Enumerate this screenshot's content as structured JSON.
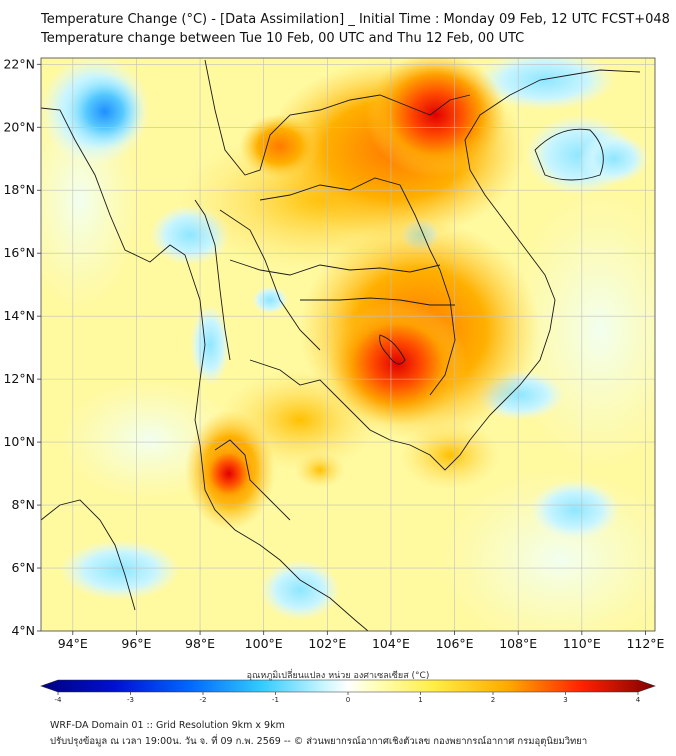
{
  "title": {
    "line1": "Temperature Change (°C) - [Data Assimilation] _ Initial Time : Monday 09 Feb, 12 UTC FCST+048",
    "line2": "Temperature change between Tue 10 Feb, 00 UTC and Thu 12 Feb, 00 UTC"
  },
  "map": {
    "lat_labels": [
      "4°N",
      "6°N",
      "8°N",
      "10°N",
      "12°N",
      "14°N",
      "16°N",
      "18°N",
      "20°N",
      "22°N"
    ],
    "lon_labels": [
      "94°E",
      "96°E",
      "98°E",
      "100°E",
      "102°E",
      "104°E",
      "106°E",
      "108°E",
      "110°E",
      "112°E"
    ],
    "lon_range": [
      93,
      112.3
    ],
    "lat_range": [
      4,
      22.2
    ],
    "hotspots": [
      {
        "lon": 105.4,
        "lat": 20.4,
        "value": 3.0
      },
      {
        "lon": 104.2,
        "lat": 12.5,
        "value": 3.0
      },
      {
        "lon": 98.9,
        "lat": 9.0,
        "value": 2.8
      },
      {
        "lon": 100.5,
        "lat": 19.4,
        "value": 2.0
      },
      {
        "lon": 95.0,
        "lat": 20.5,
        "value": -2.2
      },
      {
        "lon": 111.0,
        "lat": 19.0,
        "value": -1.0
      }
    ]
  },
  "colorbar": {
    "label": "อุณหภูมิเปลี่ยนแปลง หน่วย องศาเซลเซียส (°C)",
    "ticks": [
      "-4",
      "-3",
      "-2",
      "-1",
      "0",
      "1",
      "2",
      "3",
      "4"
    ],
    "min": -4,
    "max": 4
  },
  "footer": {
    "line1": "WRF-DA Domain 01 :: Grid Resolution 9km x 9km",
    "line2": "ปรับปรุงข้อมูล ณ เวลา 19:00น. วัน จ. ที่ 09 ก.พ. 2569 -- © ส่วนพยากรณ์อากาศเชิงตัวเลข กองพยากรณ์อากาศ กรมอุตุนิยมวิทยา"
  },
  "colors": {
    "background": "#ffff99",
    "warm": "#ff9900",
    "hot": "#ee1100",
    "cool": "#99e6ff",
    "cold": "#1f8fff",
    "coast": "#222222"
  }
}
